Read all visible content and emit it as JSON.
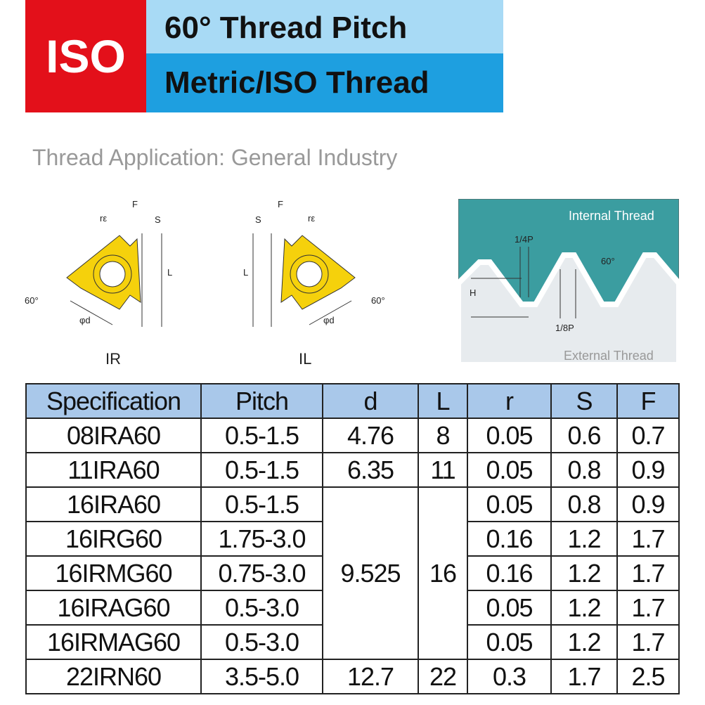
{
  "header": {
    "badge": "ISO",
    "title": "60° Thread Pitch",
    "subtitle": "Metric/ISO Thread"
  },
  "application": "Thread Application: General Industry",
  "ir": {
    "re": "rε",
    "f": "F",
    "s": "S",
    "l": "L",
    "angle": "60°",
    "d": "φd",
    "caption": "IR"
  },
  "il": {
    "re": "rε",
    "f": "F",
    "s": "S",
    "l": "L",
    "angle": "60°",
    "d": "φd",
    "caption": "IL"
  },
  "thread": {
    "internal": "Internal Thread",
    "quarter": "1/4P",
    "angle": "60°",
    "h": "H",
    "eighth": "1/8P",
    "external": "External Thread"
  },
  "table": {
    "headers": [
      "Specification",
      "Pitch",
      "d",
      "L",
      "r",
      "S",
      "F"
    ],
    "rows": [
      [
        "08IRA60",
        "0.5-1.5",
        "4.76",
        "8",
        "0.05",
        "0.6",
        "0.7"
      ],
      [
        "11IRA60",
        "0.5-1.5",
        "6.35",
        "11",
        "0.05",
        "0.8",
        "0.9"
      ],
      [
        "16IRA60",
        "0.5-1.5",
        "9.525",
        "16",
        "0.05",
        "0.8",
        "0.9"
      ],
      [
        "16IRG60",
        "1.75-3.0",
        "0.16",
        "1.2",
        "1.7"
      ],
      [
        "16IRMG60",
        "0.75-3.0",
        "0.16",
        "1.2",
        "1.7"
      ],
      [
        "16IRAG60",
        "0.5-3.0",
        "0.05",
        "1.2",
        "1.7"
      ],
      [
        "16IRMAG60",
        "0.5-3.0",
        "0.05",
        "1.2",
        "1.7"
      ],
      [
        "22IRN60",
        "3.5-5.0",
        "12.7",
        "22",
        "0.3",
        "1.7",
        "2.5"
      ]
    ]
  }
}
